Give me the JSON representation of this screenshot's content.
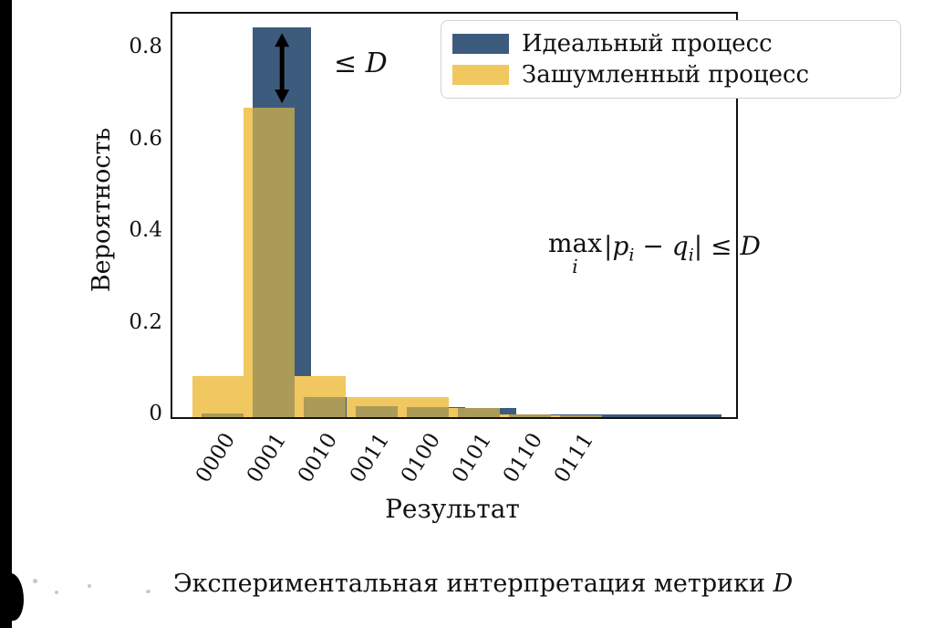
{
  "chart_data": {
    "type": "bar",
    "xlabel": "Результат",
    "ylabel": "Вероятность",
    "categories": [
      "0000",
      "0001",
      "0010",
      "0011",
      "0100",
      "0101",
      "0110",
      "0111"
    ],
    "series": [
      {
        "name": "Идеальный процесс",
        "color": "#3d5b7d",
        "values": [
          0.008,
          0.85,
          0.044,
          0.024,
          0.022,
          0.02,
          0.006,
          0.007
        ]
      },
      {
        "name": "Зашумленный процесс",
        "color": "#f1c75f",
        "values": [
          0.09,
          0.675,
          0.09,
          0.044,
          0.044,
          0.02,
          0.007,
          0.005
        ]
      }
    ],
    "overlap_color": "#ab9b58",
    "ytick_labels": [
      "0",
      "0.2",
      "0.4",
      "0.6",
      "0.8"
    ],
    "ytick_values": [
      0,
      0.2,
      0.4,
      0.6,
      0.8
    ],
    "ylim": [
      0,
      0.884
    ],
    "grid": false,
    "legend_position": "upper right",
    "extra_unlabeled_bars": {
      "series": "Идеальный процесс",
      "slots": [
        8,
        9
      ],
      "values": [
        0.007,
        0.007
      ]
    },
    "annotations": {
      "arrow_label": "≤ D",
      "double_arrow": {
        "at_category": "0001",
        "from": 0.85,
        "to": 0.675
      },
      "formula_plain": "max_i |p_i − q_i| ≤ D",
      "formula_parts": {
        "max": "max",
        "max_sub": "i",
        "t1": "|p",
        "s1": "i",
        "t2": " − q",
        "s2": "i",
        "t3": "| ≤ D"
      }
    }
  },
  "caption": {
    "text": "Экспериментальная интерпретация метрики",
    "symbol": "D"
  }
}
